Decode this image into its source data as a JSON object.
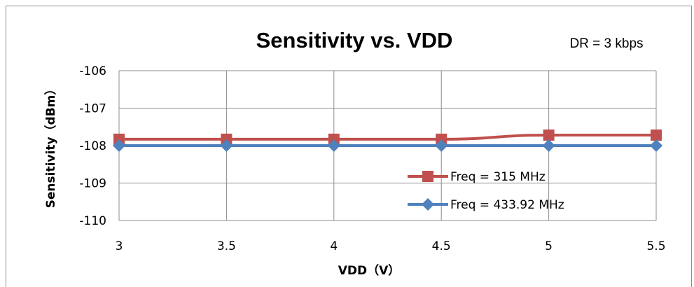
{
  "chart_data": {
    "type": "line",
    "title": "Sensitivity vs. VDD",
    "annotation": "DR = 3 kbps",
    "xlabel": "VDD（V）",
    "ylabel": "Sensitivity（dBm）",
    "x": [
      3,
      3.5,
      4,
      4.5,
      5,
      5.5
    ],
    "x_tick_labels": [
      "3",
      "3.5",
      "4",
      "4.5",
      "5",
      "5.5"
    ],
    "ylim": [
      -110,
      -106
    ],
    "y_ticks": [
      -106,
      -107,
      -108,
      -109,
      -110
    ],
    "y_tick_labels": [
      "-106",
      "-107",
      "-108",
      "-109",
      "-110"
    ],
    "grid": true,
    "legend_position": "lower-right",
    "series": [
      {
        "name": "Freq = 315 MHz",
        "values": [
          -107.83,
          -107.83,
          -107.83,
          -107.83,
          -107.72,
          -107.72
        ],
        "color": "#c0504d",
        "marker": "square"
      },
      {
        "name": "Freq = 433.92 MHz",
        "values": [
          -108.0,
          -108.0,
          -108.0,
          -108.0,
          -108.0,
          -108.0
        ],
        "color": "#4f81bd",
        "marker": "diamond"
      }
    ]
  }
}
